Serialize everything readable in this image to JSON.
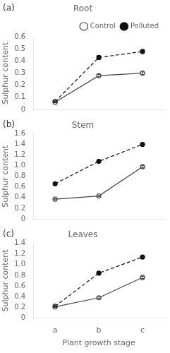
{
  "chart_data": [
    {
      "type": "line",
      "title": "Root",
      "annotations": [
        "(a)"
      ],
      "ylabel": "Sulphur content",
      "categories": [
        "a",
        "b",
        "c"
      ],
      "series": [
        {
          "name": "Control",
          "color": "#444444",
          "values": [
            0.06,
            0.28,
            0.3
          ],
          "errors": [
            0.005,
            0.01,
            0.01
          ],
          "line_style": "solid",
          "marker": "open circle"
        },
        {
          "name": "Polluted",
          "color": "#111111",
          "values": [
            0.065,
            0.43,
            0.48
          ],
          "errors": [
            0.005,
            0.015,
            0.01
          ],
          "line_style": "dashed",
          "marker": "filled circle"
        }
      ],
      "ylim": [
        0,
        0.6
      ],
      "yticks": [
        0,
        0.1,
        0.2,
        0.3,
        0.4,
        0.5,
        0.6
      ],
      "grid": false,
      "legend": "upper right",
      "tick_labels": "y"
    },
    {
      "type": "line",
      "title": "Stem",
      "annotations": [
        "(b)"
      ],
      "ylabel": "Sulphur content",
      "categories": [
        "a",
        "b",
        "c"
      ],
      "series": [
        {
          "name": "Control",
          "color": "#444444",
          "values": [
            0.37,
            0.43,
            0.98
          ],
          "errors": [
            0.01,
            0.01,
            0.02
          ],
          "line_style": "solid",
          "marker": "open circle"
        },
        {
          "name": "Polluted",
          "color": "#111111",
          "values": [
            0.66,
            1.08,
            1.4
          ],
          "errors": [
            0.01,
            0.02,
            0.015
          ],
          "line_style": "dashed",
          "marker": "filled circle"
        }
      ],
      "ylim": [
        0,
        1.6
      ],
      "yticks": [
        0,
        0.2,
        0.4,
        0.6,
        0.8,
        {
          "value": 1.0,
          "label": "1.0"
        },
        1.2,
        1.4,
        1.6
      ],
      "grid": false,
      "tick_labels": "y"
    },
    {
      "type": "line",
      "title": "Leaves",
      "annotations": [
        "(c)"
      ],
      "ylabel": "Sulphur content",
      "xlabel": "Plant growth stage",
      "categories": [
        "a",
        "b",
        "c"
      ],
      "series": [
        {
          "name": "Control",
          "color": "#444444",
          "values": [
            0.21,
            0.38,
            0.76
          ],
          "errors": [
            0.01,
            0.015,
            0.02
          ],
          "line_style": "solid",
          "marker": "open circle"
        },
        {
          "name": "Polluted",
          "color": "#111111",
          "values": [
            0.22,
            0.84,
            1.14
          ],
          "errors": [
            0.01,
            0.02,
            0.02
          ],
          "line_style": "dashed",
          "marker": "filled circle"
        }
      ],
      "ylim": [
        0,
        1.4
      ],
      "yticks": [
        0,
        0.2,
        0.4,
        0.6,
        0.8,
        {
          "value": 1.0,
          "label": "1.0"
        },
        1.2,
        1.4
      ],
      "grid": false
    }
  ]
}
